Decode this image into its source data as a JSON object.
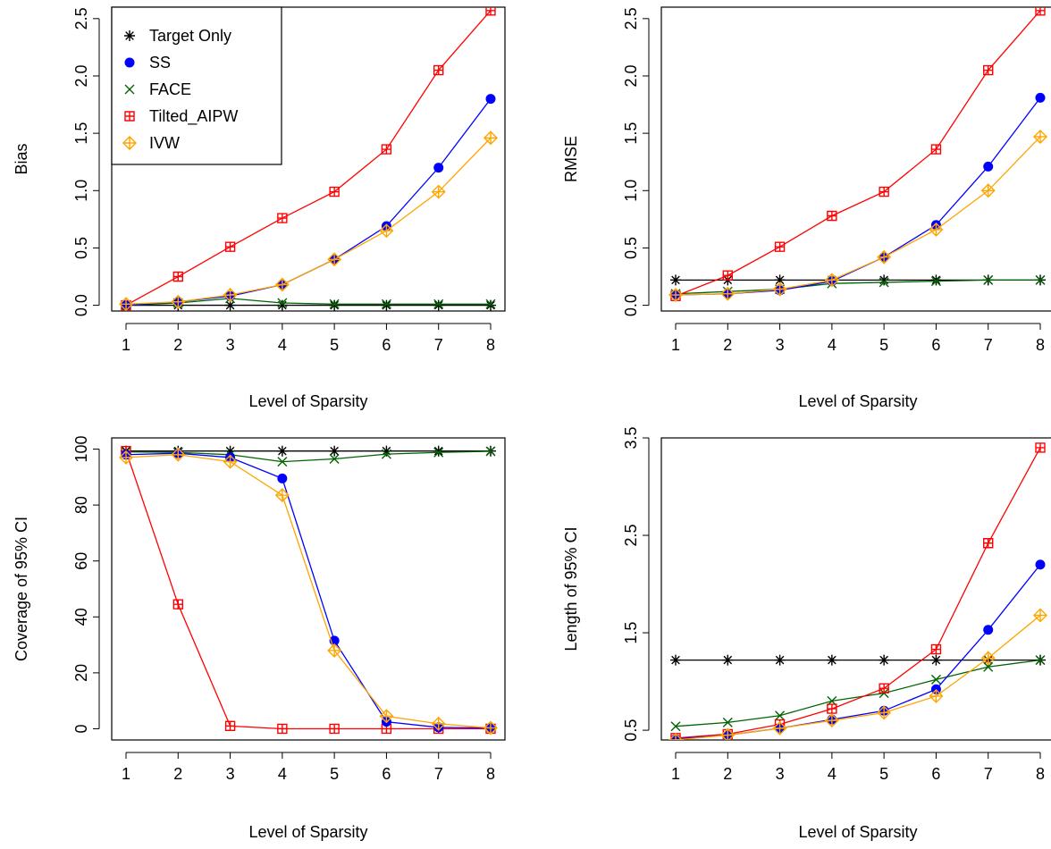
{
  "legend": {
    "entries": [
      {
        "name": "Target Only",
        "color": "#000000",
        "marker": "star"
      },
      {
        "name": "SS",
        "color": "#0000ff",
        "marker": "dot"
      },
      {
        "name": "FACE",
        "color": "#006400",
        "marker": "cross"
      },
      {
        "name": "Tilted_AIPW",
        "color": "#ff0000",
        "marker": "boxplus"
      },
      {
        "name": "IVW",
        "color": "#ffa500",
        "marker": "diamondplus"
      }
    ],
    "placement": "top-left of first panel"
  },
  "chart_data": [
    {
      "type": "line",
      "title": "",
      "xlabel": "Level of Sparsity",
      "ylabel": "Bias",
      "x": [
        1,
        2,
        3,
        4,
        5,
        6,
        7,
        8
      ],
      "xticks": [
        "1",
        "2",
        "3",
        "4",
        "5",
        "6",
        "7",
        "8"
      ],
      "yticks": [
        "0.0",
        "0.5",
        "1.0",
        "1.5",
        "2.0",
        "2.5"
      ],
      "ylim": [
        -0.05,
        2.6
      ],
      "grid": false,
      "series": [
        {
          "name": "Target Only",
          "values": [
            0.0,
            0.0,
            0.0,
            0.0,
            0.0,
            0.0,
            0.0,
            0.0
          ]
        },
        {
          "name": "SS",
          "values": [
            0.0,
            0.03,
            0.08,
            0.18,
            0.4,
            0.69,
            1.2,
            1.8
          ]
        },
        {
          "name": "FACE",
          "values": [
            0.0,
            0.02,
            0.06,
            0.02,
            0.01,
            0.01,
            0.01,
            0.01
          ]
        },
        {
          "name": "Tilted_AIPW",
          "values": [
            0.0,
            0.25,
            0.51,
            0.76,
            0.99,
            1.36,
            2.05,
            2.57
          ]
        },
        {
          "name": "IVW",
          "values": [
            0.01,
            0.03,
            0.09,
            0.18,
            0.4,
            0.65,
            0.99,
            1.46
          ]
        }
      ]
    },
    {
      "type": "line",
      "title": "",
      "xlabel": "Level of Sparsity",
      "ylabel": "RMSE",
      "x": [
        1,
        2,
        3,
        4,
        5,
        6,
        7,
        8
      ],
      "xticks": [
        "1",
        "2",
        "3",
        "4",
        "5",
        "6",
        "7",
        "8"
      ],
      "yticks": [
        "0.0",
        "0.5",
        "1.0",
        "1.5",
        "2.0",
        "2.5"
      ],
      "ylim": [
        -0.05,
        2.6
      ],
      "grid": false,
      "series": [
        {
          "name": "Target Only",
          "values": [
            0.22,
            0.22,
            0.22,
            0.22,
            0.22,
            0.22,
            0.22,
            0.22
          ]
        },
        {
          "name": "SS",
          "values": [
            0.09,
            0.1,
            0.13,
            0.21,
            0.42,
            0.7,
            1.21,
            1.81
          ]
        },
        {
          "name": "FACE",
          "values": [
            0.1,
            0.12,
            0.14,
            0.19,
            0.2,
            0.21,
            0.22,
            0.22
          ]
        },
        {
          "name": "Tilted_AIPW",
          "values": [
            0.08,
            0.26,
            0.51,
            0.78,
            0.99,
            1.36,
            2.05,
            2.57
          ]
        },
        {
          "name": "IVW",
          "values": [
            0.09,
            0.1,
            0.14,
            0.22,
            0.42,
            0.66,
            1.0,
            1.47
          ]
        }
      ]
    },
    {
      "type": "line",
      "title": "",
      "xlabel": "Level of Sparsity",
      "ylabel": "Coverage of 95% CI",
      "x": [
        1,
        2,
        3,
        4,
        5,
        6,
        7,
        8
      ],
      "xticks": [
        "1",
        "2",
        "3",
        "4",
        "5",
        "6",
        "7",
        "8"
      ],
      "yticks": [
        "0",
        "20",
        "40",
        "60",
        "80",
        "100"
      ],
      "ylim": [
        -4,
        104
      ],
      "grid": false,
      "series": [
        {
          "name": "Target Only",
          "values": [
            99.3,
            99.3,
            99.3,
            99.3,
            99.3,
            99.3,
            99.3,
            99.3
          ]
        },
        {
          "name": "SS",
          "values": [
            98,
            98.5,
            97,
            89.5,
            31.5,
            2.5,
            0.5,
            0.3
          ]
        },
        {
          "name": "FACE",
          "values": [
            99,
            98.8,
            98,
            95.5,
            96.5,
            98.2,
            98.8,
            99.2
          ]
        },
        {
          "name": "Tilted_AIPW",
          "values": [
            99.3,
            44.5,
            1.0,
            0,
            0,
            0,
            0,
            0
          ]
        },
        {
          "name": "IVW",
          "values": [
            97,
            98,
            95.5,
            83.5,
            28,
            4.5,
            1.8,
            0.3
          ]
        }
      ]
    },
    {
      "type": "line",
      "title": "",
      "xlabel": "Level of Sparsity",
      "ylabel": "Length of 95% CI",
      "x": [
        1,
        2,
        3,
        4,
        5,
        6,
        7,
        8
      ],
      "xticks": [
        "1",
        "2",
        "3",
        "4",
        "5",
        "6",
        "7",
        "8"
      ],
      "yticks": [
        "0.5",
        "1.5",
        "2.5",
        "3.5"
      ],
      "ylim": [
        0.4,
        3.5
      ],
      "grid": false,
      "series": [
        {
          "name": "Target Only",
          "values": [
            1.22,
            1.22,
            1.22,
            1.22,
            1.22,
            1.22,
            1.22,
            1.22
          ]
        },
        {
          "name": "SS",
          "values": [
            0.41,
            0.45,
            0.52,
            0.61,
            0.7,
            0.92,
            1.53,
            2.2
          ]
        },
        {
          "name": "FACE",
          "values": [
            0.54,
            0.58,
            0.65,
            0.8,
            0.88,
            1.02,
            1.15,
            1.22
          ]
        },
        {
          "name": "Tilted_AIPW",
          "values": [
            0.42,
            0.46,
            0.56,
            0.72,
            0.93,
            1.33,
            2.42,
            3.4
          ]
        },
        {
          "name": "IVW",
          "values": [
            0.4,
            0.45,
            0.52,
            0.6,
            0.68,
            0.85,
            1.24,
            1.68
          ]
        }
      ]
    }
  ]
}
